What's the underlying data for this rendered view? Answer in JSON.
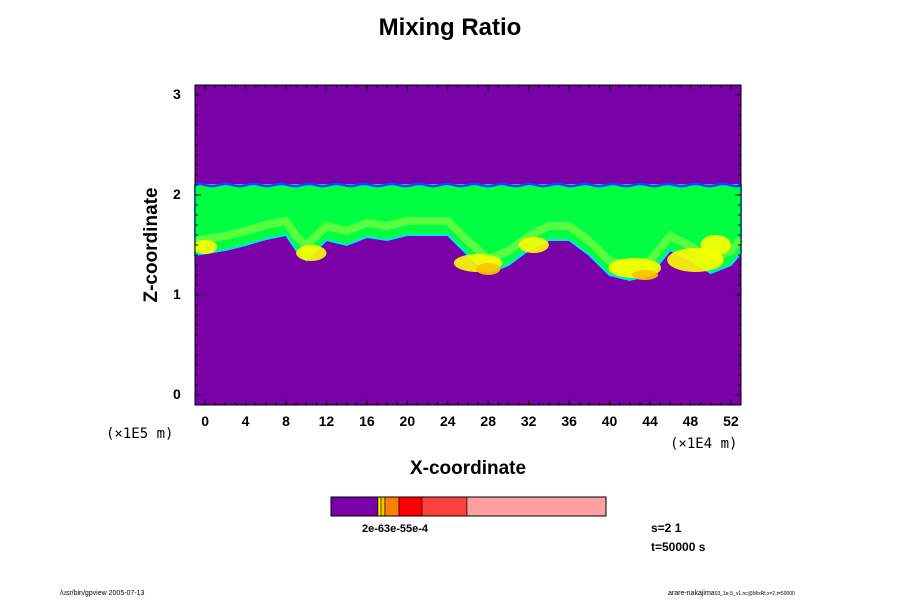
{
  "chart_data": {
    "type": "heatmap",
    "title": "Mixing Ratio",
    "xlabel": "X-coordinate",
    "ylabel": "Z-coordinate",
    "x_scale_note": "(×1E4 m)",
    "z_scale_note": "(×1E5 m)",
    "xlim": [
      -1,
      53
    ],
    "ylim": [
      -0.1,
      3.1
    ],
    "x_ticks": [
      "0",
      "4",
      "8",
      "12",
      "16",
      "20",
      "24",
      "28",
      "32",
      "36",
      "40",
      "44",
      "48",
      "52"
    ],
    "y_ticks": [
      "0",
      "1",
      "2",
      "3"
    ],
    "colorbar_label_text": "2e-63e-55e-4",
    "colorbar_colors": [
      "#7a00a8",
      "#ffff00",
      "#ffc000",
      "#ff8000",
      "#ff0000",
      "#ff4040",
      "#ffa0a0"
    ],
    "layer": {
      "top_z": 2.1,
      "base_z_default": 1.42,
      "background_color": "#7a00a8",
      "cloud_color": "#00ff40",
      "edge_color": "#00e0ff",
      "top_edge_color": "#2040ff",
      "mixed_color": "#a0ff40",
      "yellow_color": "#ffff00",
      "orange_color": "#ffc000"
    },
    "layer_base_profile": [
      {
        "x": -1,
        "z": 1.4
      },
      {
        "x": 2,
        "z": 1.45
      },
      {
        "x": 4,
        "z": 1.5
      },
      {
        "x": 6,
        "z": 1.56
      },
      {
        "x": 8,
        "z": 1.6
      },
      {
        "x": 9,
        "z": 1.45
      },
      {
        "x": 10,
        "z": 1.35
      },
      {
        "x": 11,
        "z": 1.45
      },
      {
        "x": 12,
        "z": 1.55
      },
      {
        "x": 14,
        "z": 1.5
      },
      {
        "x": 16,
        "z": 1.58
      },
      {
        "x": 18,
        "z": 1.55
      },
      {
        "x": 20,
        "z": 1.6
      },
      {
        "x": 22,
        "z": 1.6
      },
      {
        "x": 24,
        "z": 1.6
      },
      {
        "x": 26,
        "z": 1.4
      },
      {
        "x": 28,
        "z": 1.22
      },
      {
        "x": 30,
        "z": 1.3
      },
      {
        "x": 32,
        "z": 1.45
      },
      {
        "x": 34,
        "z": 1.55
      },
      {
        "x": 36,
        "z": 1.55
      },
      {
        "x": 38,
        "z": 1.4
      },
      {
        "x": 40,
        "z": 1.2
      },
      {
        "x": 42,
        "z": 1.15
      },
      {
        "x": 44,
        "z": 1.2
      },
      {
        "x": 46,
        "z": 1.45
      },
      {
        "x": 48,
        "z": 1.35
      },
      {
        "x": 50,
        "z": 1.22
      },
      {
        "x": 52,
        "z": 1.3
      },
      {
        "x": 53,
        "z": 1.42
      }
    ],
    "patches": [
      {
        "x": 0,
        "z": 1.48,
        "rx": 1.2,
        "rz": 0.07,
        "level": "yellow"
      },
      {
        "x": 10.5,
        "z": 1.42,
        "rx": 1.5,
        "rz": 0.08,
        "level": "yellow"
      },
      {
        "x": 27,
        "z": 1.32,
        "rx": 2.4,
        "rz": 0.09,
        "level": "yellow"
      },
      {
        "x": 28,
        "z": 1.26,
        "rx": 1.2,
        "rz": 0.06,
        "level": "orange"
      },
      {
        "x": 32.5,
        "z": 1.5,
        "rx": 1.5,
        "rz": 0.08,
        "level": "yellow"
      },
      {
        "x": 42.5,
        "z": 1.27,
        "rx": 2.6,
        "rz": 0.1,
        "level": "yellow"
      },
      {
        "x": 43.5,
        "z": 1.2,
        "rx": 1.3,
        "rz": 0.05,
        "level": "orange"
      },
      {
        "x": 48.5,
        "z": 1.35,
        "rx": 2.8,
        "rz": 0.12,
        "level": "yellow"
      },
      {
        "x": 50.5,
        "z": 1.5,
        "rx": 1.5,
        "rz": 0.1,
        "level": "yellow"
      }
    ]
  },
  "info": {
    "step": "s=2 1",
    "time": "t=50000 s"
  },
  "footer": {
    "left": "/usr/bin/gpview 2005-07-13",
    "right_main": "arare-nakajima",
    "right_small": "03_1e-5_v1.nc@MixRt,x=2,t=50000"
  }
}
